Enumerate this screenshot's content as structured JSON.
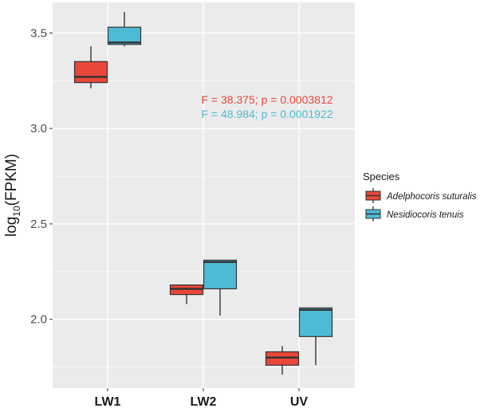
{
  "chart_data": {
    "type": "boxplot",
    "title": "",
    "xlabel": "",
    "ylabel": {
      "prefix": "log",
      "subscript": "10",
      "suffix": "(FPKM)"
    },
    "ylim": [
      1.64,
      3.66
    ],
    "yticks": [
      2.0,
      2.5,
      3.0,
      3.5
    ],
    "ytick_labels": [
      "2.0",
      "2.5",
      "3.0",
      "3.5"
    ],
    "categories": [
      "LW1",
      "LW2",
      "UV"
    ],
    "legend": {
      "title": "Species",
      "position": "right",
      "entries": [
        "Adelphocoris suturalis",
        "Nesidiocoris tenuis"
      ]
    },
    "series": [
      {
        "name": "Adelphocoris suturalis",
        "color": "#E8473A",
        "boxes": [
          {
            "category": "LW1",
            "whisker_low": 3.21,
            "q1": 3.24,
            "median": 3.27,
            "q3": 3.35,
            "whisker_high": 3.43
          },
          {
            "category": "LW2",
            "whisker_low": 2.08,
            "q1": 2.13,
            "median": 2.16,
            "q3": 2.18,
            "whisker_high": 2.18
          },
          {
            "category": "UV",
            "whisker_low": 1.71,
            "q1": 1.76,
            "median": 1.8,
            "q3": 1.83,
            "whisker_high": 1.86
          }
        ]
      },
      {
        "name": "Nesidiocoris tenuis",
        "color": "#4DBBD5",
        "boxes": [
          {
            "category": "LW1",
            "whisker_low": 3.43,
            "q1": 3.44,
            "median": 3.45,
            "q3": 3.53,
            "whisker_high": 3.61
          },
          {
            "category": "LW2",
            "whisker_low": 2.02,
            "q1": 2.16,
            "median": 2.3,
            "q3": 2.31,
            "whisker_high": 2.31
          },
          {
            "category": "UV",
            "whisker_low": 1.76,
            "q1": 1.91,
            "median": 2.05,
            "q3": 2.06,
            "whisker_high": 2.06
          }
        ]
      }
    ],
    "annotations": [
      {
        "text": "F = 38.375; p = 0.0003812",
        "color": "#E8473A",
        "x": "LW2-UV",
        "y": 3.18
      },
      {
        "text": "F = 48.984; p = 0.0001922",
        "color": "#4DBBD5",
        "x": "LW2-UV",
        "y": 3.1
      }
    ],
    "colors": {
      "panel_bg": "#EBEBEB",
      "grid": "#FFFFFF",
      "box_outline": "#333333"
    }
  }
}
